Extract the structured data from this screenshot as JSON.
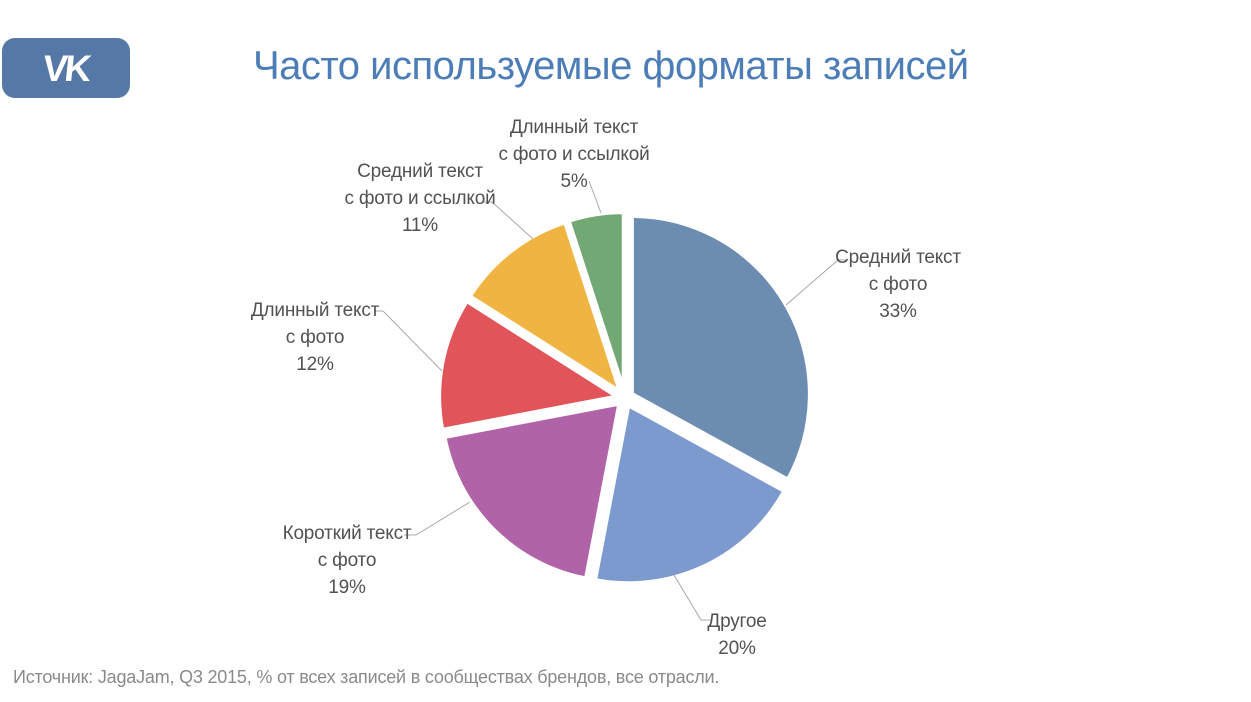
{
  "header": {
    "logo_text": "VK",
    "logo_color": "#5578a7"
  },
  "chart_data": {
    "type": "pie",
    "title": "Часто используемые форматы записей",
    "title_color": "#4d7db6",
    "source": "Источник: JagaJam, Q3 2015, % от всех записей в сообществах брендов, все отрасли.",
    "direction": "clockwise",
    "start_angle_deg": 0,
    "legend_position": "outside-callouts",
    "leader_line_color": "#a8a8a8",
    "slices": [
      {
        "label": "Средний текст с фото",
        "label_lines": [
          "Средний текст",
          "с фото"
        ],
        "pct": "33%",
        "value": 33,
        "color": "#6d8cb1"
      },
      {
        "label": "Другое",
        "label_lines": [
          "Другое"
        ],
        "pct": "20%",
        "value": 20,
        "color": "#7d9ace"
      },
      {
        "label": "Короткий текст с фото",
        "label_lines": [
          "Короткий текст",
          "с фото"
        ],
        "pct": "19%",
        "value": 19,
        "color": "#b063a6"
      },
      {
        "label": "Длинный текст с фото",
        "label_lines": [
          "Длинный текст",
          "с фото"
        ],
        "pct": "12%",
        "value": 12,
        "color": "#e0545a"
      },
      {
        "label": "Средний текст с фото и ссылкой",
        "label_lines": [
          "Средний текст",
          "с фото и ссылкой"
        ],
        "pct": "11%",
        "value": 11,
        "color": "#f0b442"
      },
      {
        "label": "Длинный текст с фото и ссылкой",
        "label_lines": [
          "Длинный текст",
          "с фото и ссылкой"
        ],
        "pct": "5%",
        "value": 5,
        "color": "#71a873"
      }
    ]
  }
}
